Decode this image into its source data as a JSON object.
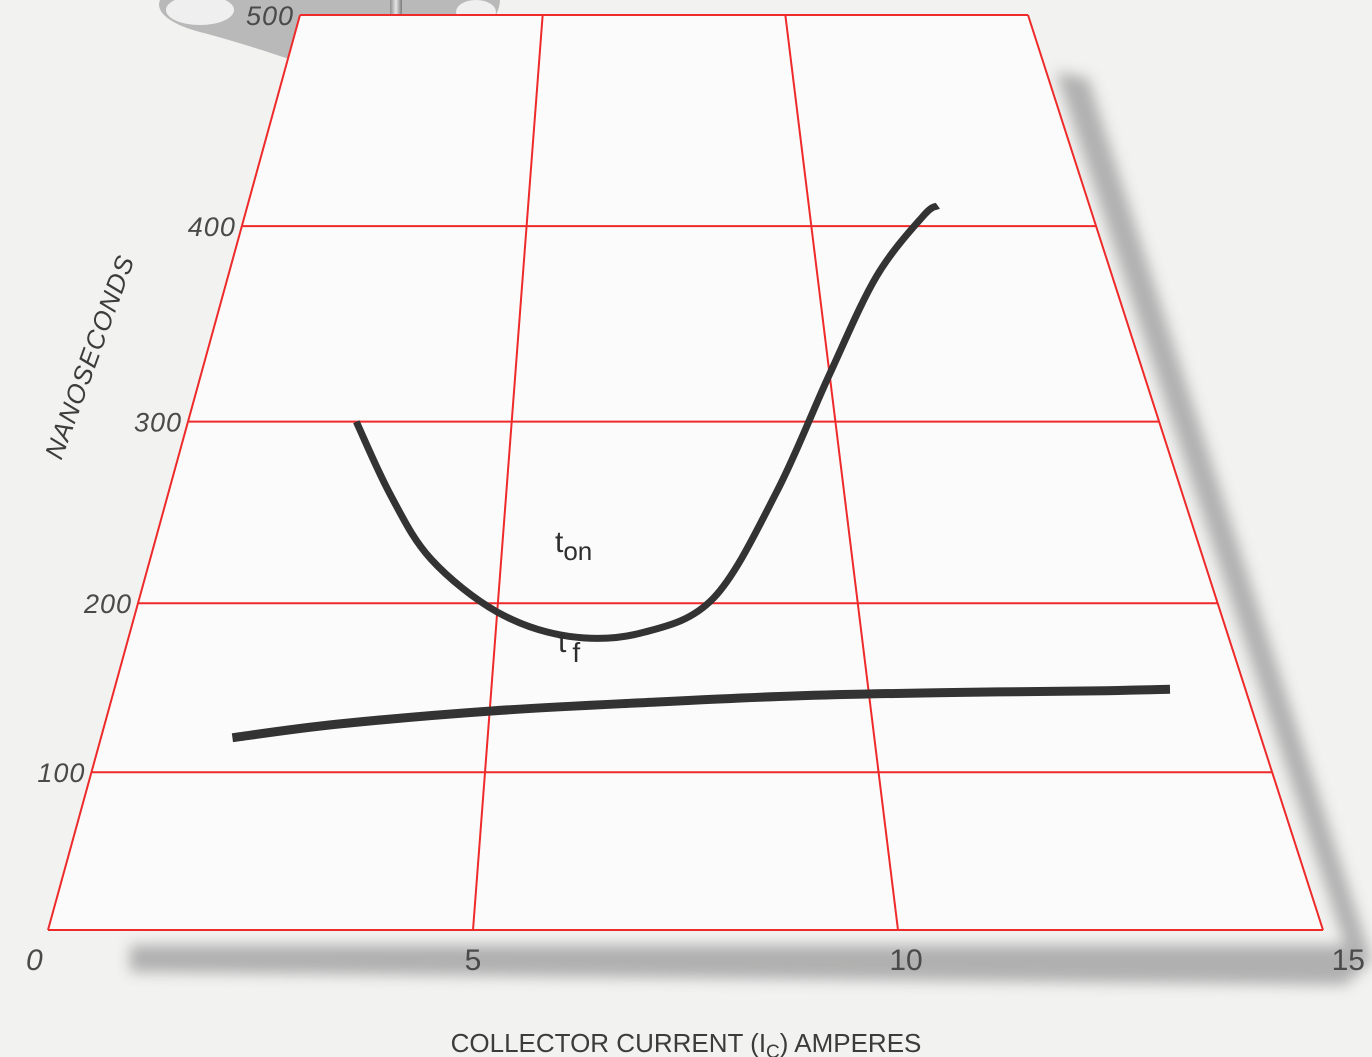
{
  "chart_data": {
    "type": "line",
    "title": "",
    "xlabel": {
      "prefix": "COLLECTOR CURRENT (I",
      "subscript": "C",
      "suffix": ") AMPERES"
    },
    "ylabel": "NANOSECONDS",
    "x_ticks": [
      "0",
      "5",
      "10",
      "15"
    ],
    "y_ticks": [
      "100",
      "200",
      "300",
      "400",
      "500"
    ],
    "xlim": [
      0,
      15
    ],
    "ylim": [
      0,
      500
    ],
    "grid": true,
    "grid_color": "#ee2a2a",
    "line_color": "#333333",
    "series": [
      {
        "name": {
          "base": "t",
          "subscript": "on"
        },
        "x": [
          2.6,
          3.3,
          4.0,
          5.0,
          6.0,
          7.0,
          8.0,
          9.0,
          10.0,
          11.0,
          12.0,
          12.3
        ],
        "y": [
          300,
          260,
          225,
          195,
          181,
          183,
          203,
          262,
          325,
          375,
          405,
          410
        ]
      },
      {
        "name": {
          "base": "t",
          "subscript": "f"
        },
        "x": [
          1.7,
          3,
          5,
          7,
          9,
          11,
          13,
          14.0
        ],
        "y": [
          121,
          129,
          137,
          142,
          146,
          148,
          149,
          150
        ]
      }
    ]
  }
}
